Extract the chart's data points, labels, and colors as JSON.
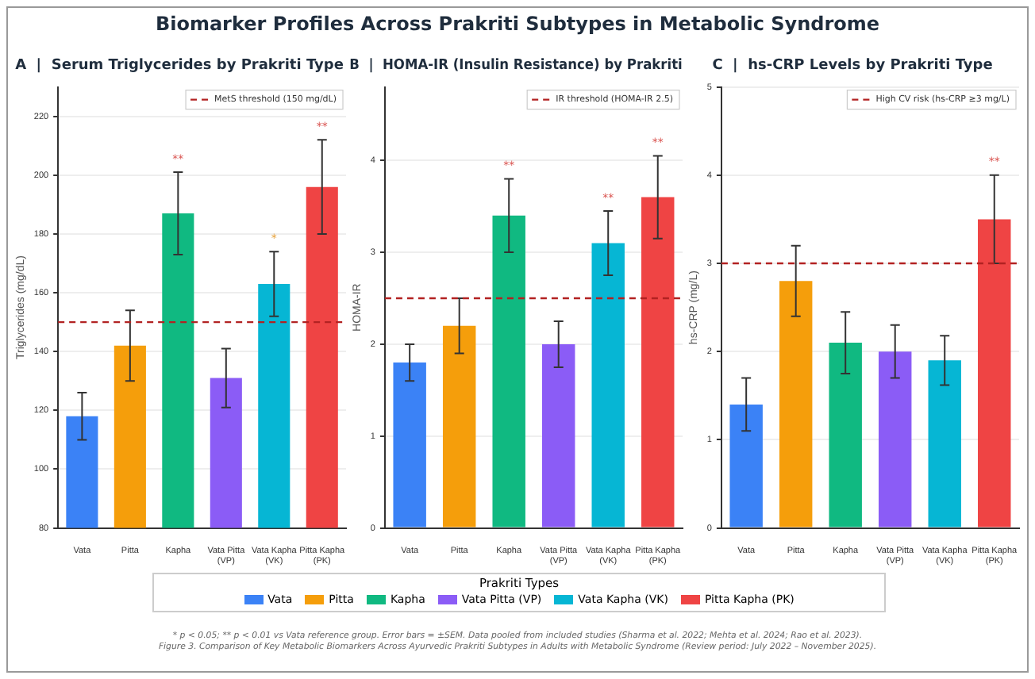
{
  "chart_data": [
    {
      "type": "bar",
      "title": "A  |  Serum Triglycerides by Prakriti Type",
      "ylabel": "Triglycerides (mg/dL)",
      "categories": [
        "Vata",
        "Pitta",
        "Kapha",
        "Vata Pitta\n(VP)",
        "Vata Kapha\n(VK)",
        "Pitta Kapha\n(PK)"
      ],
      "colors": [
        "#3b82f6",
        "#f59e0b",
        "#10b981",
        "#8b5cf6",
        "#06b6d4",
        "#ef4444"
      ],
      "values": [
        118,
        142,
        187,
        131,
        163,
        196
      ],
      "errors": [
        8,
        12,
        14,
        10,
        11,
        16
      ],
      "ylim": [
        80,
        230
      ],
      "yticks": [
        80,
        100,
        120,
        140,
        160,
        180,
        200,
        220
      ],
      "grid": "y",
      "legend": "top right",
      "ref_lines": [
        {
          "axis": "y",
          "value": 150,
          "label": "MetS threshold (150 mg/dL)",
          "color": "#b22222",
          "line_style": "dashed"
        }
      ],
      "annotations": [
        "Biomarker Profiles Across Prakriti Subtypes in Metabolic Syndrome",
        {
          "text": "**",
          "x": "Kapha",
          "y": 201
        },
        {
          "text": "*",
          "x": "Vata Kapha\n(VK)",
          "y": 174
        },
        {
          "text": "**",
          "x": "Pitta Kapha\n(PK)",
          "y": 212
        }
      ]
    },
    {
      "type": "bar",
      "title": "B  |  HOMA-IR (Insulin Resistance) by Prakriti",
      "ylabel": "HOMA-IR",
      "categories": [
        "Vata",
        "Pitta",
        "Kapha",
        "Vata Pitta\n(VP)",
        "Vata Kapha\n(VK)",
        "Pitta Kapha\n(PK)"
      ],
      "colors": [
        "#3b82f6",
        "#f59e0b",
        "#10b981",
        "#8b5cf6",
        "#06b6d4",
        "#ef4444"
      ],
      "values": [
        1.8,
        2.2,
        3.4,
        2.0,
        3.1,
        3.6
      ],
      "errors": [
        0.2,
        0.3,
        0.4,
        0.25,
        0.35,
        0.45
      ],
      "ylim": [
        0,
        4.8
      ],
      "yticks": [
        0,
        1,
        2,
        3,
        4
      ],
      "grid": "y",
      "legend": "top right",
      "ref_lines": [
        {
          "axis": "y",
          "value": 2.5,
          "label": "IR threshold (HOMA-IR 2.5)",
          "color": "#b22222",
          "line_style": "dashed"
        }
      ],
      "legend_title": "Prakriti Types",
      "annotations": [
        "* p < 0.05; ** p < 0.01 vs Vata reference group. Error bars = ±SEM. Data pooled from included studies (Sharma et al. 2022; Mehta et al. 2024; Rao et al. 2023).",
        "Figure 3. Comparison of Key Metabolic Biomarkers Across Ayurvedic Prakriti Subtypes in Adults with Metabolic Syndrome (Review period: July 2022 – November 2025).",
        {
          "text": "**",
          "x": "Kapha",
          "y": 3.8
        },
        {
          "text": "**",
          "x": "Vata Kapha\n(VK)",
          "y": 3.45
        },
        {
          "text": "**",
          "x": "Pitta Kapha\n(PK)",
          "y": 4.05
        }
      ]
    },
    {
      "type": "bar",
      "title": "C  |  hs-CRP Levels by Prakriti Type",
      "ylabel": "hs-CRP (mg/L)",
      "categories": [
        "Vata",
        "Pitta",
        "Kapha",
        "Vata Pitta\n(VP)",
        "Vata Kapha\n(VK)",
        "Pitta Kapha\n(PK)"
      ],
      "colors": [
        "#3b82f6",
        "#f59e0b",
        "#10b981",
        "#8b5cf6",
        "#06b6d4",
        "#ef4444"
      ],
      "values": [
        1.4,
        2.8,
        2.1,
        2.0,
        1.9,
        3.5
      ],
      "errors": [
        0.3,
        0.4,
        0.35,
        0.3,
        0.28,
        0.5
      ],
      "ylim": [
        0,
        5
      ],
      "yticks": [
        0,
        1,
        2,
        3,
        4,
        5
      ],
      "grid": "y",
      "legend": "top right",
      "ref_lines": [
        {
          "axis": "y",
          "value": 3,
          "label": "High CV risk (hs-CRP ≥3 mg/L)",
          "color": "#b22222",
          "line_style": "dashed"
        }
      ],
      "annotations": [
        {
          "text": "**",
          "x": "Pitta Kapha\n(PK)",
          "y": 4.0
        }
      ]
    }
  ]
}
